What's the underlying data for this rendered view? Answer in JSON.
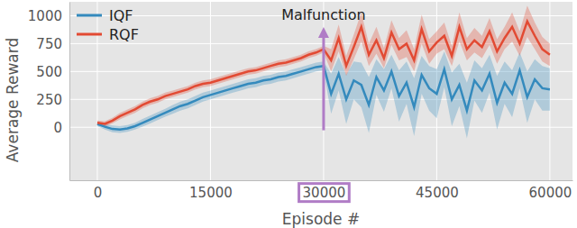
{
  "chart_data": {
    "type": "line",
    "x_label": "Episode #",
    "y_label": "Average Reward",
    "x": [
      0,
      1000,
      2000,
      3000,
      4000,
      5000,
      6000,
      7000,
      8000,
      9000,
      10000,
      11000,
      12000,
      13000,
      14000,
      15000,
      16000,
      17000,
      18000,
      19000,
      20000,
      21000,
      22000,
      23000,
      24000,
      25000,
      26000,
      27000,
      28000,
      29000,
      30000,
      31000,
      32000,
      33000,
      34000,
      35000,
      36000,
      37000,
      38000,
      39000,
      40000,
      41000,
      42000,
      43000,
      44000,
      45000,
      46000,
      47000,
      48000,
      49000,
      50000,
      51000,
      52000,
      53000,
      54000,
      55000,
      56000,
      57000,
      58000,
      59000,
      60000
    ],
    "series": [
      {
        "name": "IQF",
        "color": "#348abd",
        "values": [
          30,
          5,
          -15,
          -20,
          -10,
          10,
          40,
          70,
          100,
          130,
          160,
          190,
          210,
          240,
          270,
          290,
          310,
          330,
          350,
          370,
          390,
          400,
          420,
          430,
          450,
          460,
          480,
          500,
          520,
          540,
          550,
          300,
          480,
          250,
          420,
          380,
          200,
          450,
          330,
          500,
          280,
          400,
          180,
          470,
          350,
          300,
          520,
          250,
          380,
          150,
          420,
          330,
          480,
          220,
          400,
          300,
          510,
          270,
          430,
          350,
          340
        ],
        "error": [
          20,
          25,
          30,
          30,
          30,
          30,
          35,
          35,
          35,
          35,
          40,
          40,
          40,
          40,
          40,
          40,
          40,
          40,
          40,
          40,
          40,
          40,
          40,
          40,
          40,
          40,
          40,
          40,
          40,
          40,
          40,
          180,
          150,
          220,
          170,
          200,
          250,
          160,
          190,
          150,
          230,
          190,
          260,
          170,
          200,
          220,
          160,
          240,
          190,
          250,
          180,
          200,
          170,
          240,
          190,
          210,
          160,
          230,
          180,
          200,
          190
        ]
      },
      {
        "name": "RQF",
        "color": "#e24a33",
        "values": [
          40,
          30,
          60,
          100,
          130,
          160,
          200,
          230,
          250,
          280,
          300,
          320,
          340,
          370,
          390,
          400,
          420,
          440,
          460,
          480,
          500,
          510,
          530,
          550,
          570,
          580,
          600,
          620,
          650,
          670,
          700,
          600,
          800,
          550,
          720,
          900,
          650,
          780,
          620,
          850,
          700,
          750,
          600,
          880,
          680,
          760,
          820,
          640,
          900,
          700,
          780,
          720,
          860,
          680,
          800,
          900,
          750,
          950,
          820,
          700,
          650
        ],
        "error": [
          20,
          25,
          25,
          30,
          30,
          30,
          30,
          30,
          30,
          30,
          30,
          30,
          30,
          30,
          30,
          30,
          30,
          30,
          30,
          30,
          30,
          30,
          30,
          30,
          30,
          30,
          30,
          30,
          30,
          30,
          30,
          100,
          120,
          90,
          110,
          130,
          100,
          120,
          90,
          110,
          100,
          120,
          100,
          130,
          110,
          100,
          120,
          90,
          130,
          100,
          110,
          100,
          120,
          110,
          100,
          130,
          110,
          140,
          120,
          110,
          100
        ]
      }
    ],
    "xlim": [
      -3700,
      63000
    ],
    "xticks": [
      0,
      15000,
      30000,
      45000,
      60000
    ],
    "ylim": [
      -475,
      1125
    ],
    "yticks": [
      0,
      250,
      500,
      750,
      1000
    ],
    "grid": true,
    "legend": "upper left",
    "annotations": [
      {
        "text": "Malfunction",
        "x": 30000
      }
    ]
  }
}
